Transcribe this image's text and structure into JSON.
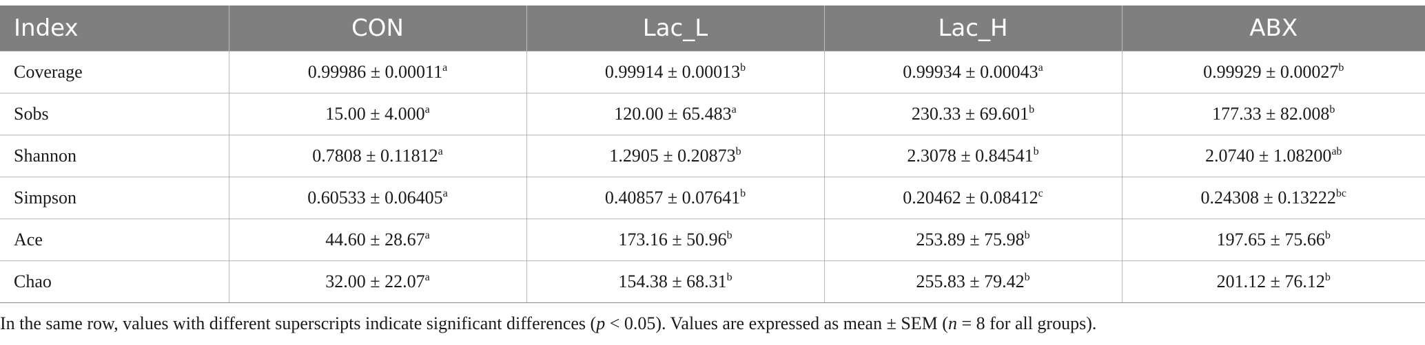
{
  "table": {
    "headers": [
      "Index",
      "CON",
      "Lac_L",
      "Lac_H",
      "ABX"
    ],
    "rows": [
      {
        "index": "Coverage",
        "cells": [
          {
            "value": "0.99986 ± 0.00011",
            "sup": "a"
          },
          {
            "value": "0.99914 ± 0.00013",
            "sup": "b"
          },
          {
            "value": "0.99934 ± 0.00043",
            "sup": "a"
          },
          {
            "value": "0.99929 ± 0.00027",
            "sup": "b"
          }
        ]
      },
      {
        "index": "Sobs",
        "cells": [
          {
            "value": "15.00 ± 4.000",
            "sup": "a"
          },
          {
            "value": "120.00 ± 65.483",
            "sup": "a"
          },
          {
            "value": "230.33 ± 69.601",
            "sup": "b"
          },
          {
            "value": "177.33 ± 82.008",
            "sup": "b"
          }
        ]
      },
      {
        "index": "Shannon",
        "cells": [
          {
            "value": "0.7808 ± 0.11812",
            "sup": "a"
          },
          {
            "value": "1.2905 ± 0.20873",
            "sup": "b"
          },
          {
            "value": "2.3078 ± 0.84541",
            "sup": "b"
          },
          {
            "value": "2.0740 ± 1.08200",
            "sup": "ab"
          }
        ]
      },
      {
        "index": "Simpson",
        "cells": [
          {
            "value": "0.60533 ± 0.06405",
            "sup": "a"
          },
          {
            "value": "0.40857 ± 0.07641",
            "sup": "b"
          },
          {
            "value": "0.20462 ± 0.08412",
            "sup": "c"
          },
          {
            "value": "0.24308 ± 0.13222",
            "sup": "bc"
          }
        ]
      },
      {
        "index": "Ace",
        "cells": [
          {
            "value": "44.60 ± 28.67",
            "sup": "a"
          },
          {
            "value": "173.16 ± 50.96",
            "sup": "b"
          },
          {
            "value": "253.89 ± 75.98",
            "sup": "b"
          },
          {
            "value": "197.65 ± 75.66",
            "sup": "b"
          }
        ]
      },
      {
        "index": "Chao",
        "cells": [
          {
            "value": "32.00 ± 22.07",
            "sup": "a"
          },
          {
            "value": "154.38 ± 68.31",
            "sup": "b"
          },
          {
            "value": "255.83 ± 79.42",
            "sup": "b"
          },
          {
            "value": "201.12 ± 76.12",
            "sup": "b"
          }
        ]
      }
    ]
  },
  "footnote": {
    "part1": "In the same row, values with different superscripts indicate significant differences (",
    "p": "p",
    "part2": " < 0.05). Values are expressed as mean ± SEM (",
    "n": "n",
    "part3": " = 8 for all groups)."
  },
  "colors": {
    "header_bg": "#7f7f7f",
    "header_text": "#ffffff",
    "grid": "#b8b8b8"
  }
}
